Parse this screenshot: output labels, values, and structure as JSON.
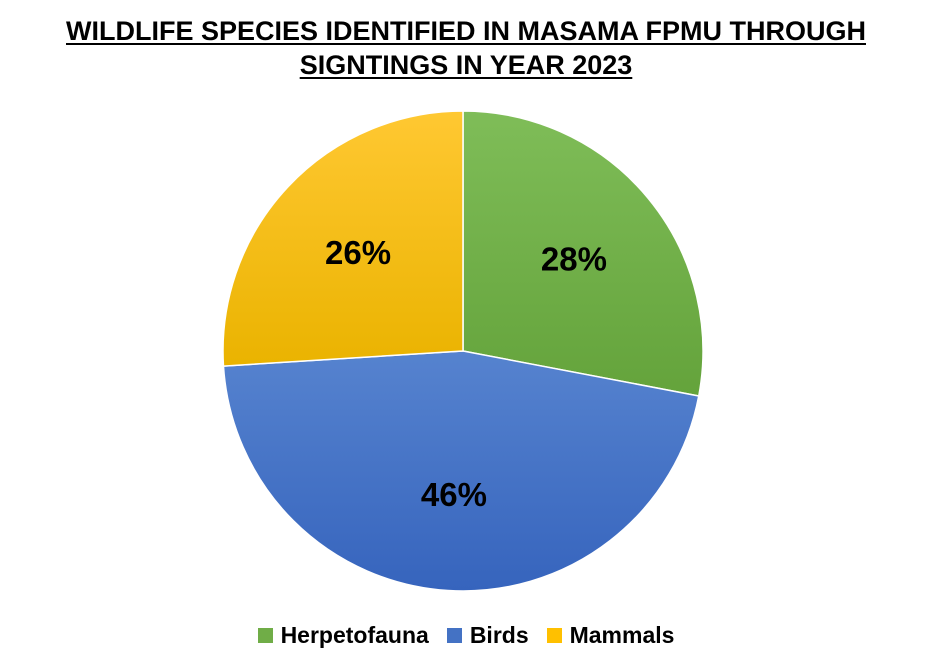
{
  "chart_data": {
    "type": "pie",
    "title_lines": [
      "WILDLIFE SPECIES IDENTIFIED IN MASAMA FPMU THROUGH",
      "SIGNTINGS IN YEAR 2023"
    ],
    "categories": [
      "Herpetofauna",
      "Birds",
      "Mammals"
    ],
    "values": [
      28,
      46,
      26
    ],
    "labels": [
      "28%",
      "46%",
      "26%"
    ],
    "colors": [
      "#70ad47",
      "#4472c4",
      "#ffc000"
    ],
    "start_angle_deg": 0,
    "direction": "clockwise",
    "legend_position": "bottom"
  }
}
